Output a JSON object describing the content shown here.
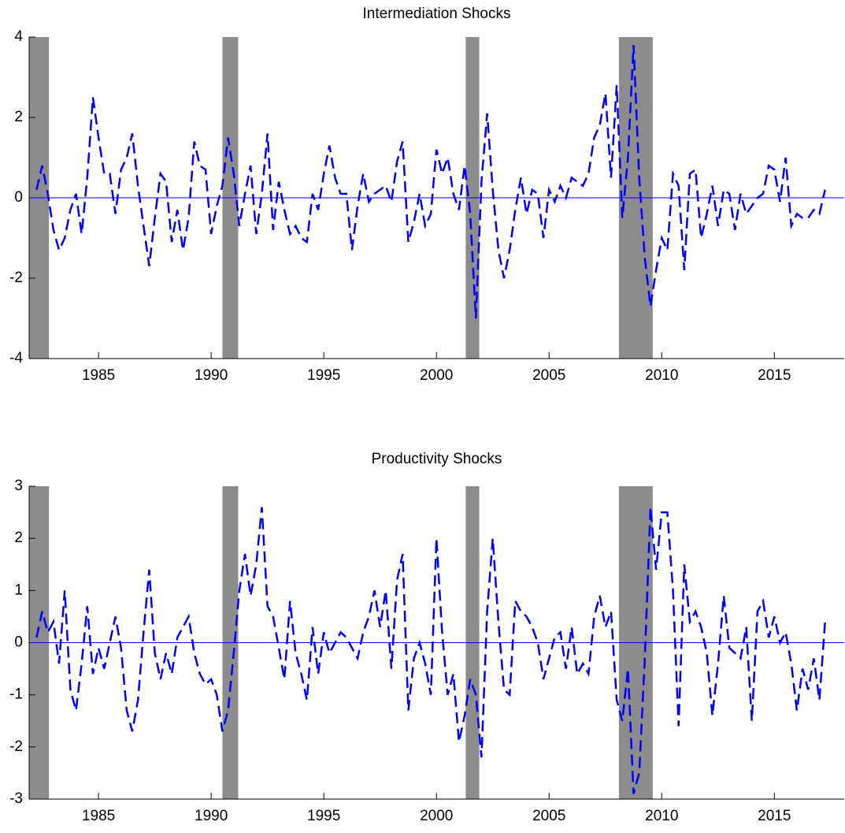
{
  "chart_data": [
    {
      "type": "line",
      "title": "Intermediation Shocks",
      "x": [
        1982.25,
        1982.5,
        1982.75,
        1983,
        1983.25,
        1983.5,
        1983.75,
        1984,
        1984.25,
        1984.5,
        1984.75,
        1985,
        1985.25,
        1985.5,
        1985.75,
        1986,
        1986.25,
        1986.5,
        1986.75,
        1987,
        1987.25,
        1987.5,
        1987.75,
        1988,
        1988.25,
        1988.5,
        1988.75,
        1989,
        1989.25,
        1989.5,
        1989.75,
        1990,
        1990.25,
        1990.5,
        1990.75,
        1991,
        1991.25,
        1991.5,
        1991.75,
        1992,
        1992.25,
        1992.5,
        1992.75,
        1993,
        1993.25,
        1993.5,
        1993.75,
        1994,
        1994.25,
        1994.5,
        1994.75,
        1995,
        1995.25,
        1995.5,
        1995.75,
        1996,
        1996.25,
        1996.5,
        1996.75,
        1997,
        1997.25,
        1997.5,
        1997.75,
        1998,
        1998.25,
        1998.5,
        1998.75,
        1999,
        1999.25,
        1999.5,
        1999.75,
        2000,
        2000.25,
        2000.5,
        2000.75,
        2001,
        2001.25,
        2001.5,
        2001.75,
        2002,
        2002.25,
        2002.5,
        2002.75,
        2003,
        2003.25,
        2003.5,
        2003.75,
        2004,
        2004.25,
        2004.5,
        2004.75,
        2005,
        2005.25,
        2005.5,
        2005.75,
        2006,
        2006.25,
        2006.5,
        2006.75,
        2007,
        2007.25,
        2007.5,
        2007.75,
        2008,
        2008.25,
        2008.5,
        2008.75,
        2009,
        2009.25,
        2009.5,
        2009.75,
        2010,
        2010.25,
        2010.5,
        2010.75,
        2011,
        2011.25,
        2011.5,
        2011.75,
        2012,
        2012.25,
        2012.5,
        2012.75,
        2013,
        2013.25,
        2013.5,
        2013.75,
        2014,
        2014.25,
        2014.5,
        2014.75,
        2015,
        2015.25,
        2015.5,
        2015.75,
        2016,
        2016.25,
        2016.5,
        2016.75,
        2017,
        2017.25
      ],
      "values": [
        0.2,
        0.8,
        0.1,
        -0.8,
        -1.3,
        -1.0,
        -0.3,
        0.1,
        -0.9,
        0.5,
        2.5,
        1.5,
        0.6,
        0.6,
        -0.4,
        0.7,
        1.0,
        1.6,
        0.3,
        -0.7,
        -1.7,
        -0.5,
        0.6,
        0.4,
        -1.1,
        -0.3,
        -1.3,
        -0.5,
        1.4,
        0.8,
        0.7,
        -0.9,
        -0.2,
        0.3,
        1.5,
        0.6,
        -0.7,
        0.1,
        0.8,
        -0.9,
        0.1,
        1.6,
        -0.8,
        0.4,
        -0.3,
        -0.9,
        -0.7,
        -1.0,
        -1.1,
        0.1,
        -0.3,
        0.6,
        1.3,
        0.5,
        0.1,
        0.1,
        -1.3,
        -0.2,
        0.6,
        -0.1,
        0.1,
        0.2,
        0.3,
        -0.1,
        0.9,
        1.4,
        -1.1,
        -0.6,
        0.1,
        -0.7,
        -0.4,
        1.2,
        0.6,
        1.0,
        0.1,
        -0.3,
        0.8,
        -0.4,
        -3.0,
        0.4,
        2.1,
        0.2,
        -1.3,
        -2.0,
        -1.3,
        -0.3,
        0.5,
        -0.4,
        0.2,
        0.1,
        -1.0,
        0.2,
        -0.1,
        0.3,
        0.0,
        0.5,
        0.4,
        0.3,
        0.6,
        1.5,
        1.8,
        2.6,
        0.5,
        2.8,
        -0.5,
        1.0,
        3.8,
        0.5,
        -1.5,
        -2.7,
        -1.8,
        -1.0,
        -1.3,
        0.6,
        0.3,
        -1.8,
        0.6,
        0.7,
        -1.0,
        -0.4,
        0.3,
        -0.7,
        0.2,
        0.1,
        -0.8,
        0.1,
        -0.4,
        -0.2,
        0.0,
        0.1,
        0.8,
        0.7,
        -0.1,
        1.0,
        -0.7,
        -0.4,
        -0.5,
        -0.5,
        -0.3,
        -0.4,
        0.2
      ],
      "color": "#0000ff",
      "line_style": "dashed",
      "zero_line": true,
      "recessions": [
        [
          1981.92,
          1982.8
        ],
        [
          1990.5,
          1991.2
        ],
        [
          2001.3,
          2001.9
        ],
        [
          2008.1,
          2009.6
        ]
      ],
      "recession_color": "#8c8c8c",
      "xlim": [
        1981.92,
        2018.1
      ],
      "ylim": [
        -4,
        4
      ],
      "xticks": [
        1985,
        1990,
        1995,
        2000,
        2005,
        2010,
        2015
      ],
      "yticks": [
        -4,
        -2,
        0,
        2,
        4
      ]
    },
    {
      "type": "line",
      "title": "Productivity Shocks",
      "x": [
        1982.25,
        1982.5,
        1982.75,
        1983,
        1983.25,
        1983.5,
        1983.75,
        1984,
        1984.25,
        1984.5,
        1984.75,
        1985,
        1985.25,
        1985.5,
        1985.75,
        1986,
        1986.25,
        1986.5,
        1986.75,
        1987,
        1987.25,
        1987.5,
        1987.75,
        1988,
        1988.25,
        1988.5,
        1988.75,
        1989,
        1989.25,
        1989.5,
        1989.75,
        1990,
        1990.25,
        1990.5,
        1990.75,
        1991,
        1991.25,
        1991.5,
        1991.75,
        1992,
        1992.25,
        1992.5,
        1992.75,
        1993,
        1993.25,
        1993.5,
        1993.75,
        1994,
        1994.25,
        1994.5,
        1994.75,
        1995,
        1995.25,
        1995.5,
        1995.75,
        1996,
        1996.25,
        1996.5,
        1996.75,
        1997,
        1997.25,
        1997.5,
        1997.75,
        1998,
        1998.25,
        1998.5,
        1998.75,
        1999,
        1999.25,
        1999.5,
        1999.75,
        2000,
        2000.25,
        2000.5,
        2000.75,
        2001,
        2001.25,
        2001.5,
        2001.75,
        2002,
        2002.25,
        2002.5,
        2002.75,
        2003,
        2003.25,
        2003.5,
        2003.75,
        2004,
        2004.25,
        2004.5,
        2004.75,
        2005,
        2005.25,
        2005.5,
        2005.75,
        2006,
        2006.25,
        2006.5,
        2006.75,
        2007,
        2007.25,
        2007.5,
        2007.75,
        2008,
        2008.25,
        2008.5,
        2008.75,
        2009,
        2009.25,
        2009.5,
        2009.75,
        2010,
        2010.25,
        2010.5,
        2010.75,
        2011,
        2011.25,
        2011.5,
        2011.75,
        2012,
        2012.25,
        2012.5,
        2012.75,
        2013,
        2013.25,
        2013.5,
        2013.75,
        2014,
        2014.25,
        2014.5,
        2014.75,
        2015,
        2015.25,
        2015.5,
        2015.75,
        2016,
        2016.25,
        2016.5,
        2016.75,
        2017,
        2017.25
      ],
      "values": [
        0.1,
        0.6,
        0.2,
        0.4,
        -0.4,
        1.0,
        -0.9,
        -1.3,
        -0.4,
        0.7,
        -0.6,
        -0.1,
        -0.5,
        0.0,
        0.5,
        -0.1,
        -1.3,
        -1.7,
        -1.1,
        0.2,
        1.4,
        -0.2,
        -0.7,
        -0.2,
        -0.6,
        0.1,
        0.3,
        0.5,
        -0.2,
        -0.6,
        -0.8,
        -0.7,
        -1.0,
        -1.7,
        -1.3,
        -0.2,
        1.0,
        1.7,
        0.9,
        1.5,
        2.6,
        0.7,
        0.5,
        -0.1,
        -0.7,
        0.8,
        -0.2,
        -0.6,
        -1.1,
        0.3,
        -0.6,
        0.2,
        -0.2,
        0.0,
        0.2,
        0.1,
        -0.1,
        -0.3,
        0.2,
        0.5,
        1.0,
        0.3,
        1.0,
        -0.5,
        1.2,
        1.7,
        -1.3,
        -0.3,
        0.0,
        -0.4,
        -1.0,
        2.0,
        0.2,
        -1.0,
        -0.6,
        -1.9,
        -1.4,
        -0.7,
        -1.0,
        -2.2,
        0.6,
        2.0,
        0.4,
        -0.9,
        -1.0,
        0.8,
        0.6,
        0.5,
        0.3,
        0.0,
        -0.7,
        -0.3,
        0.1,
        0.2,
        -0.5,
        0.3,
        -0.6,
        -0.4,
        -0.6,
        0.5,
        0.9,
        0.3,
        0.6,
        -1.1,
        -1.5,
        -0.5,
        -2.9,
        -2.5,
        -0.3,
        2.6,
        1.4,
        2.5,
        2.5,
        1.0,
        -1.6,
        1.5,
        0.4,
        0.6,
        0.3,
        -0.2,
        -1.4,
        -0.4,
        0.9,
        -0.1,
        -0.2,
        -0.3,
        0.3,
        -1.5,
        0.6,
        0.8,
        0.1,
        0.5,
        0.0,
        0.2,
        -0.4,
        -1.3,
        -0.5,
        -0.9,
        -0.3,
        -1.1,
        0.4
      ],
      "color": "#0000ff",
      "line_style": "dashed",
      "zero_line": true,
      "recessions": [
        [
          1981.92,
          1982.8
        ],
        [
          1990.5,
          1991.2
        ],
        [
          2001.3,
          2001.9
        ],
        [
          2008.1,
          2009.6
        ]
      ],
      "recession_color": "#8c8c8c",
      "xlim": [
        1981.92,
        2018.1
      ],
      "ylim": [
        -3,
        3
      ],
      "xticks": [
        1985,
        1990,
        1995,
        2000,
        2005,
        2010,
        2015
      ],
      "yticks": [
        -3,
        -2,
        -1,
        0,
        1,
        2,
        3
      ]
    }
  ]
}
